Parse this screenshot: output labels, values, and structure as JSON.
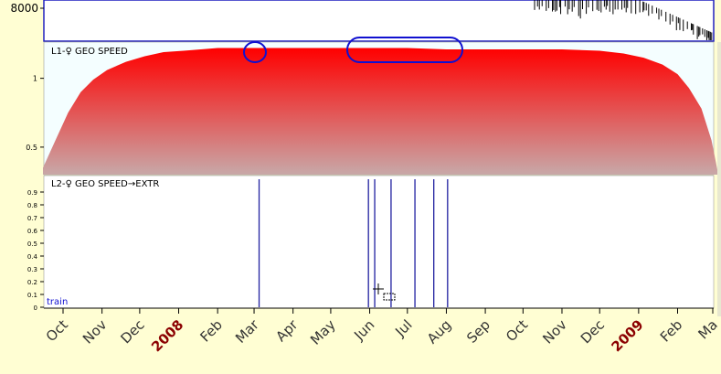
{
  "top_panel": {
    "tick_label": "8000",
    "tick_value": 8000
  },
  "chart_data": [
    {
      "type": "area",
      "title": "L1-♀ GEO SPEED",
      "y_ticks": [
        0.5,
        1
      ],
      "ylim": [
        0.3,
        1.25
      ],
      "x": [
        "2007-09-15",
        "2007-09-25",
        "2007-10-05",
        "2007-10-15",
        "2007-10-25",
        "2007-11-05",
        "2007-11-20",
        "2007-12-05",
        "2007-12-20",
        "2008-01-05",
        "2008-02-01",
        "2008-03-01",
        "2008-04-01",
        "2008-05-01",
        "2008-06-01",
        "2008-07-01",
        "2008-08-01",
        "2008-09-01",
        "2008-10-01",
        "2008-11-01",
        "2008-12-01",
        "2008-12-20",
        "2009-01-05",
        "2009-01-20",
        "2009-02-01",
        "2009-02-10",
        "2009-02-20",
        "2009-02-28",
        "2009-03-05"
      ],
      "values": [
        0.35,
        0.55,
        0.75,
        0.9,
        0.99,
        1.06,
        1.12,
        1.16,
        1.19,
        1.2,
        1.22,
        1.22,
        1.22,
        1.22,
        1.22,
        1.22,
        1.21,
        1.21,
        1.21,
        1.21,
        1.2,
        1.18,
        1.15,
        1.1,
        1.03,
        0.93,
        0.78,
        0.55,
        0.32
      ],
      "fill_top_color": "#ff0000",
      "fill_bottom_color": "#c8a8a8",
      "annotation_color": "#1010d0"
    },
    {
      "type": "bar",
      "title": "L2-♀ GEO SPEED→EXTR",
      "y_ticks": [
        0,
        0.1,
        0.2,
        0.3,
        0.4,
        0.5,
        0.6,
        0.7,
        0.8,
        0.9
      ],
      "ylim": [
        0,
        1
      ],
      "events": [
        "2008-03-05",
        "2008-05-31",
        "2008-06-05",
        "2008-06-18",
        "2008-07-07",
        "2008-07-22",
        "2008-08-02"
      ],
      "values": [
        1,
        1,
        1,
        1,
        1,
        1,
        1
      ],
      "line_color": "#2020a0",
      "corner_label": "train"
    }
  ],
  "x_axis": {
    "ticks": [
      {
        "label": "Oct",
        "date": "2007-10-01",
        "highlight": false
      },
      {
        "label": "Nov",
        "date": "2007-11-01",
        "highlight": false
      },
      {
        "label": "Dec",
        "date": "2007-12-01",
        "highlight": false
      },
      {
        "label": "2008",
        "date": "2008-01-01",
        "highlight": true
      },
      {
        "label": "Feb",
        "date": "2008-02-01",
        "highlight": false
      },
      {
        "label": "Mar",
        "date": "2008-03-01",
        "highlight": false
      },
      {
        "label": "Apr",
        "date": "2008-04-01",
        "highlight": false
      },
      {
        "label": "May",
        "date": "2008-05-01",
        "highlight": false
      },
      {
        "label": "Jun",
        "date": "2008-06-01",
        "highlight": false
      },
      {
        "label": "Jul",
        "date": "2008-07-01",
        "highlight": false
      },
      {
        "label": "Aug",
        "date": "2008-08-01",
        "highlight": false
      },
      {
        "label": "Sep",
        "date": "2008-09-01",
        "highlight": false
      },
      {
        "label": "Oct",
        "date": "2008-10-01",
        "highlight": false
      },
      {
        "label": "Nov",
        "date": "2008-11-01",
        "highlight": false
      },
      {
        "label": "Dec",
        "date": "2008-12-01",
        "highlight": false
      },
      {
        "label": "2009",
        "date": "2009-01-01",
        "highlight": true
      },
      {
        "label": "Feb",
        "date": "2009-02-01",
        "highlight": false
      },
      {
        "label": "Ma",
        "date": "2009-03-01",
        "highlight": false
      }
    ],
    "label_color": "#333333",
    "highlight_color": "#8b0000"
  }
}
